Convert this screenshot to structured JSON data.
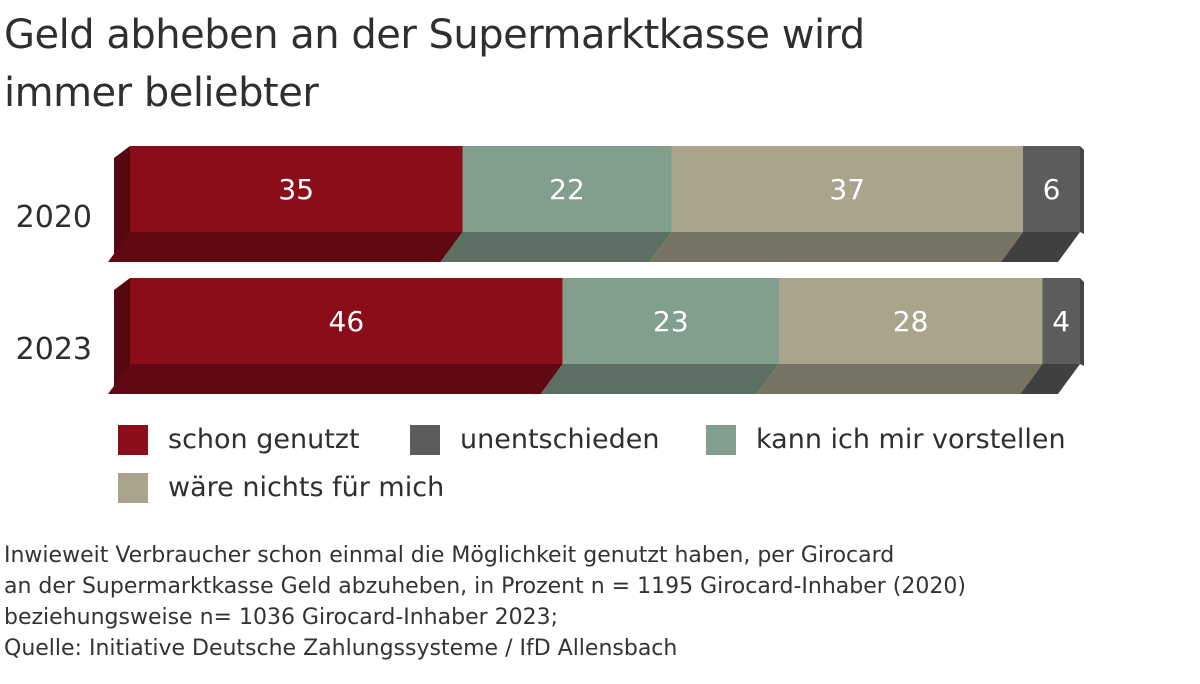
{
  "title_lines": [
    "Geld abheben an der Supermarktkasse wird",
    "immer beliebter"
  ],
  "chart_data": {
    "type": "bar",
    "orientation": "horizontal",
    "stacked": true,
    "unit": "Prozent",
    "categories": [
      "2020",
      "2023"
    ],
    "series": [
      {
        "name": "schon genutzt",
        "color": "#8b0d1a",
        "values": [
          35,
          46
        ]
      },
      {
        "name": "kann ich mir vorstellen",
        "color": "#829e8c",
        "values": [
          22,
          23
        ]
      },
      {
        "name": "wäre nichts für mich",
        "color": "#aaa48c",
        "values": [
          37,
          28
        ]
      },
      {
        "name": "unentschieden",
        "color": "#5c5c5c",
        "values": [
          6,
          4
        ]
      }
    ],
    "legend_order": [
      "schon genutzt",
      "unentschieden",
      "kann ich mir vorstellen",
      "wäre nichts für mich"
    ],
    "legend_position": "bottom",
    "grid": false
  },
  "note_lines": [
    "Inwieweit Verbraucher schon einmal die Möglichkeit genutzt haben, per Girocard",
    "an der Supermarktkasse Geld abzuheben, in Prozent n = 1195 Girocard-Inhaber (2020)",
    "beziehungsweise n= 1036 Girocard-Inhaber 2023;",
    "Quelle: Initiative Deutsche Zahlungssysteme / IfD Allensbach"
  ]
}
